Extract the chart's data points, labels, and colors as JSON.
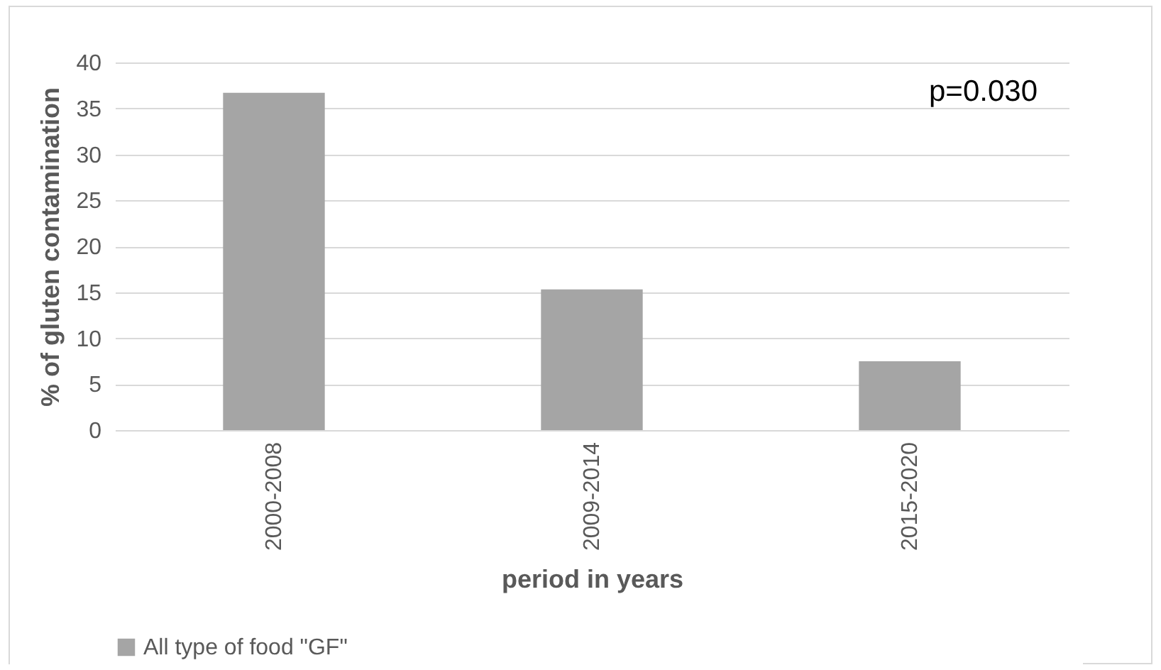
{
  "chart_data": {
    "type": "bar",
    "xlabel": "period in years",
    "ylabel": "% of  gluten contamination",
    "categories": [
      "2000-2008",
      "2009-2014",
      "2015-2020"
    ],
    "series": [
      {
        "name": "All type of food \"GF\"",
        "color": "#a5a5a5",
        "values": [
          36.7,
          15.3,
          7.5
        ]
      }
    ],
    "ylim": [
      0,
      40
    ],
    "yticks": [
      0,
      5,
      10,
      15,
      20,
      25,
      30,
      35,
      40
    ],
    "grid": "y",
    "legend": "bottom",
    "annotations": [
      "p=0.030"
    ]
  }
}
